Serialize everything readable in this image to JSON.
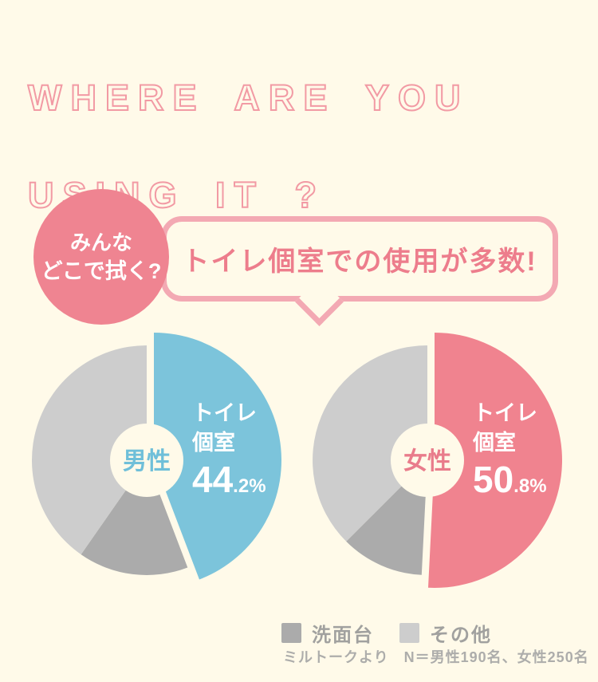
{
  "title": {
    "line1": "WHERE ARE YOU",
    "line2": "USING IT ?",
    "stroke_color": "#F29AA4"
  },
  "badge": {
    "line1": "みんな",
    "line2": "どこで拭く?",
    "bg_color": "#EF8491"
  },
  "bubble": {
    "text": "トイレ個室での使用が多数!",
    "border_color": "#F3A9B3",
    "text_color": "#ED7D8C"
  },
  "chart_data": [
    {
      "type": "pie",
      "id": "male",
      "center_label": "男性",
      "center_label_color": "#6FBFD9",
      "slices": [
        {
          "label": "トイレ個室",
          "label_lines": [
            "トイレ",
            "個室"
          ],
          "value": 44.2,
          "color": "#7CC4DB",
          "exploded": true,
          "value_labeled": true
        },
        {
          "label": "洗面台",
          "value": 15.5,
          "color": "#ABABAB",
          "value_labeled": false
        },
        {
          "label": "その他",
          "value": 40.3,
          "color": "#CDCDCD",
          "value_labeled": false
        }
      ]
    },
    {
      "type": "pie",
      "id": "female",
      "center_label": "女性",
      "center_label_color": "#E97C8B",
      "slices": [
        {
          "label": "トイレ個室",
          "label_lines": [
            "トイレ",
            "個室"
          ],
          "value": 50.8,
          "color": "#F0838F",
          "exploded": true,
          "value_labeled": true
        },
        {
          "label": "洗面台",
          "value": 11.7,
          "color": "#ABABAB",
          "value_labeled": false
        },
        {
          "label": "その他",
          "value": 37.5,
          "color": "#CDCDCD",
          "value_labeled": false
        }
      ]
    }
  ],
  "legend": {
    "items": [
      {
        "label": "洗面台",
        "color": "#ABABAB"
      },
      {
        "label": "その他",
        "color": "#CDCDCD"
      }
    ]
  },
  "footer": {
    "text": "ミルトークより　N＝男性190名、女性250名"
  }
}
